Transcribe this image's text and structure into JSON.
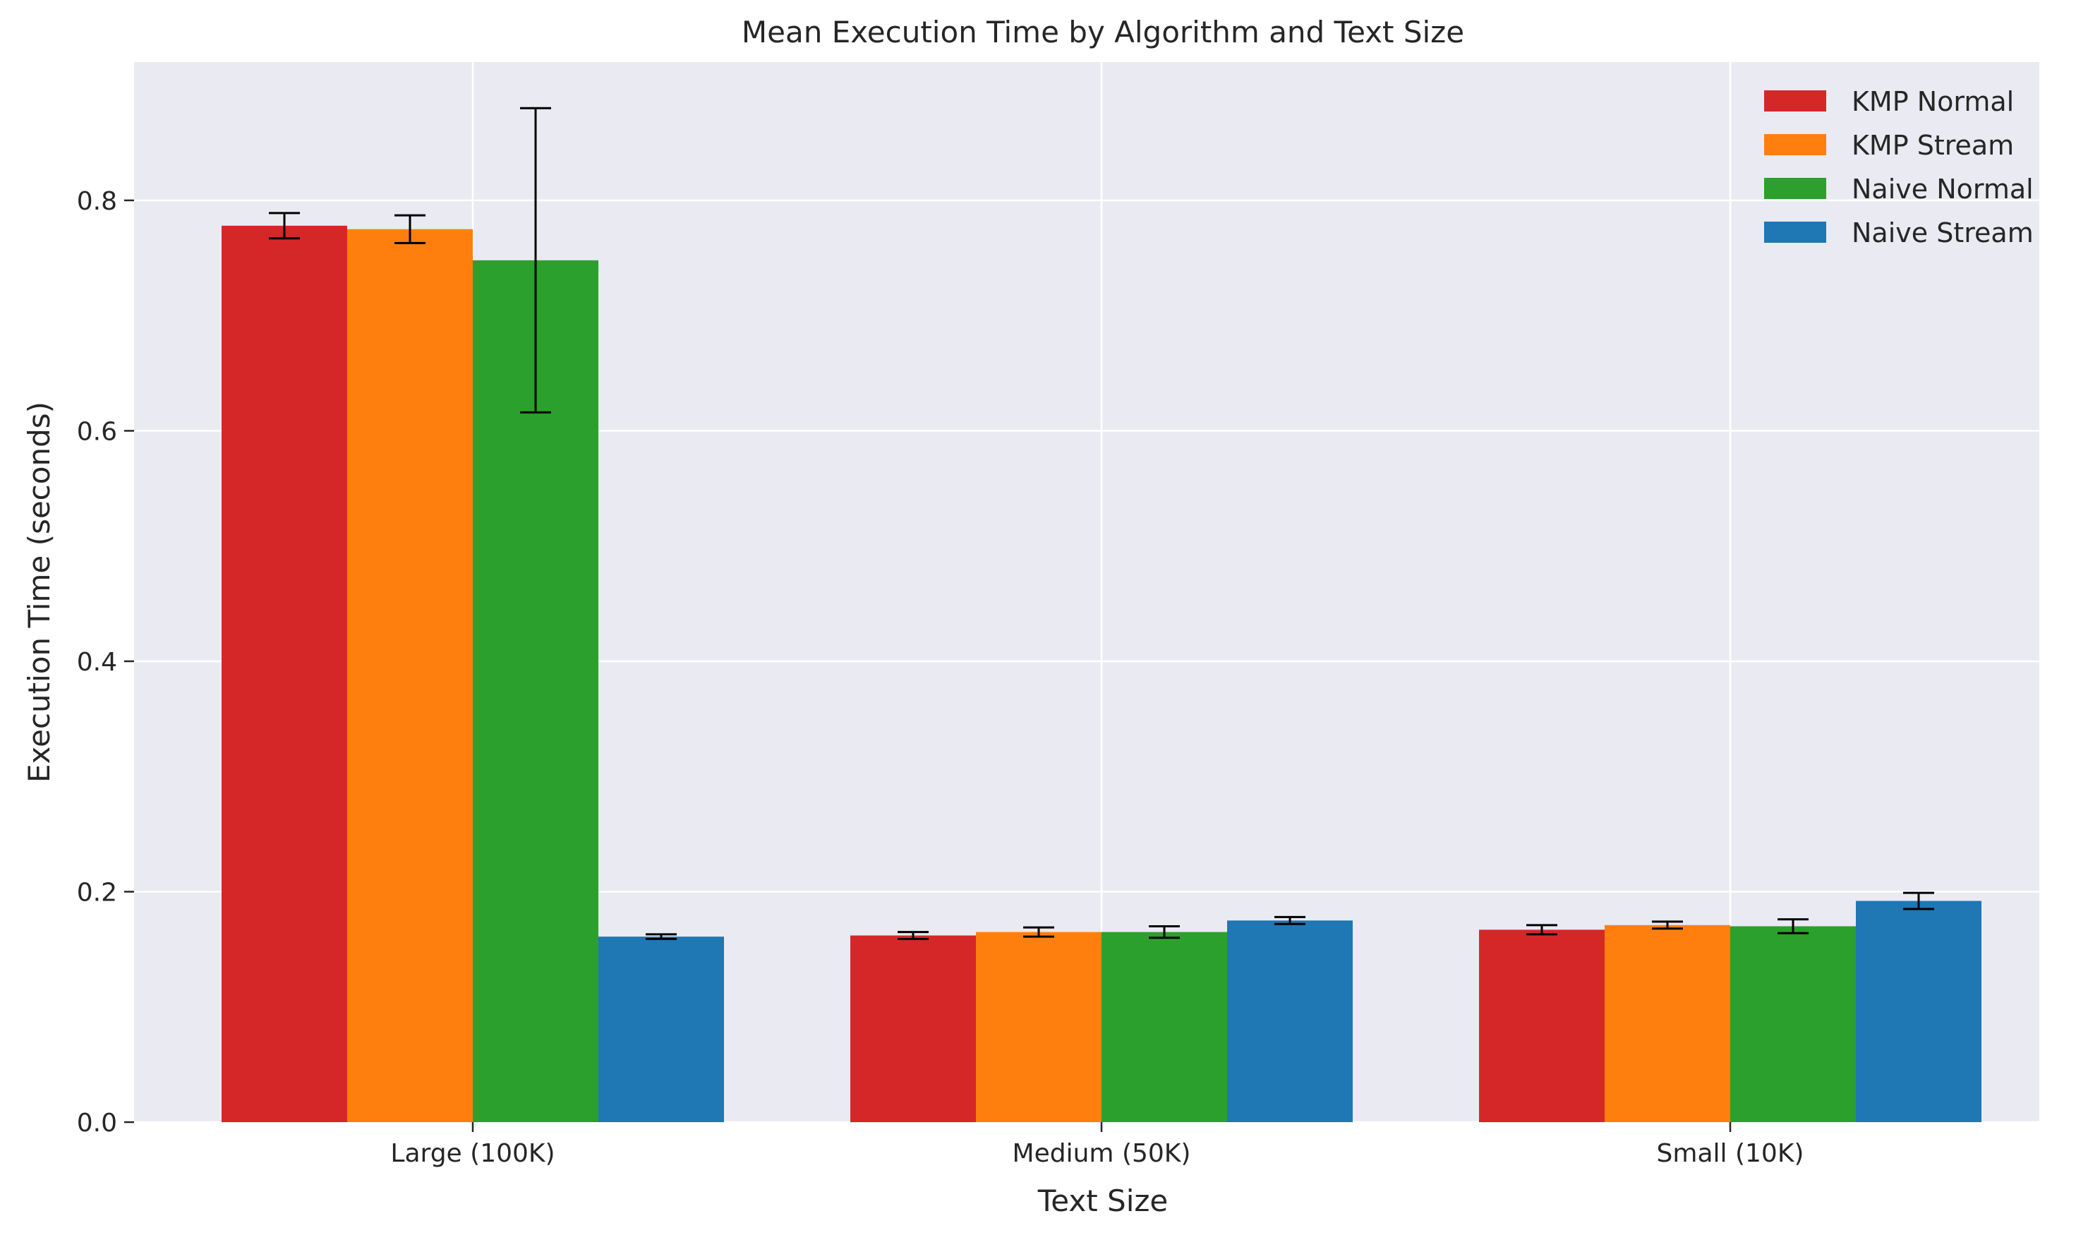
{
  "chart_data": {
    "type": "bar",
    "title": "Mean Execution Time by Algorithm and Text Size",
    "xlabel": "Text Size",
    "ylabel": "Execution Time (seconds)",
    "categories": [
      "Large (100K)",
      "Medium (50K)",
      "Small (10K)"
    ],
    "ylim": [
      0,
      0.92
    ],
    "yticks": [
      0.0,
      0.2,
      0.4,
      0.6,
      0.8
    ],
    "ytick_labels": [
      "0.0",
      "0.2",
      "0.4",
      "0.6",
      "0.8"
    ],
    "grid": true,
    "legend_position": "top-right",
    "series": [
      {
        "name": "KMP Normal",
        "color": "#d62728",
        "values": [
          0.778,
          0.162,
          0.167
        ],
        "errors": [
          0.011,
          0.003,
          0.004
        ]
      },
      {
        "name": "KMP Stream",
        "color": "#ff7f0e",
        "values": [
          0.775,
          0.165,
          0.171
        ],
        "errors": [
          0.012,
          0.004,
          0.003
        ]
      },
      {
        "name": "Naive Normal",
        "color": "#2ca02c",
        "values": [
          0.748,
          0.165,
          0.17
        ],
        "errors": [
          0.132,
          0.005,
          0.006
        ]
      },
      {
        "name": "Naive Stream",
        "color": "#1f77b4",
        "values": [
          0.161,
          0.175,
          0.192
        ],
        "errors": [
          0.002,
          0.003,
          0.007
        ]
      }
    ]
  }
}
